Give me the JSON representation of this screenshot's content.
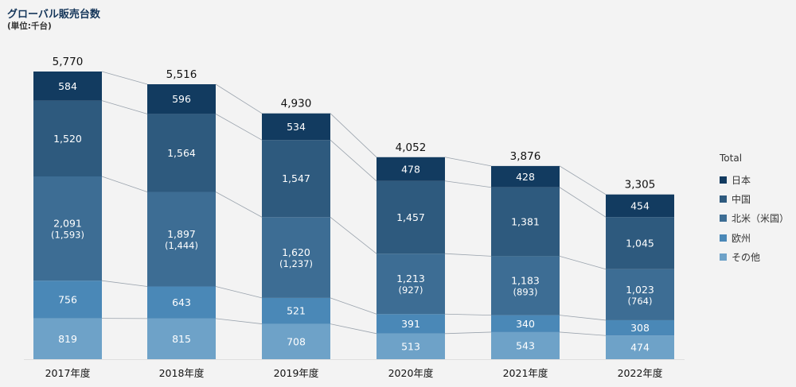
{
  "header": {
    "title": "グローバル販売台数",
    "unit": "(単位:千台)"
  },
  "colors": {
    "日本": "#123b60",
    "中国": "#2e5a7e",
    "北米": "#3d6d94",
    "欧州": "#4a88b7",
    "その他": "#6ea2c8",
    "connector": "#9aa3ad",
    "text_light": "#ffffff",
    "text_dark": "#111111"
  },
  "legend": {
    "title": "Total",
    "items": [
      "日本",
      "中国",
      "北米（米国）",
      "欧州",
      "その他"
    ]
  },
  "chart_data": {
    "type": "bar",
    "stacked": true,
    "categories": [
      "2017年度",
      "2018年度",
      "2019年度",
      "2020年度",
      "2021年度",
      "2022年度"
    ],
    "series": [
      {
        "name": "その他",
        "values": [
          819,
          815,
          708,
          513,
          543,
          474
        ]
      },
      {
        "name": "欧州",
        "values": [
          756,
          643,
          521,
          391,
          340,
          308
        ]
      },
      {
        "name": "北米（米国）",
        "values": [
          2091,
          1897,
          1620,
          1213,
          1183,
          1023
        ],
        "sublabels": [
          "(1,593)",
          "(1,444)",
          "(1,237)",
          "(927)",
          "(893)",
          "(764)"
        ]
      },
      {
        "name": "中国",
        "values": [
          1520,
          1564,
          1547,
          1457,
          1381,
          1045
        ]
      },
      {
        "name": "日本",
        "values": [
          584,
          596,
          534,
          478,
          428,
          454
        ]
      }
    ],
    "totals": [
      5770,
      5516,
      4930,
      4052,
      3876,
      3305
    ],
    "value_labels": {
      "その他": [
        "819",
        "815",
        "708",
        "513",
        "543",
        "474"
      ],
      "欧州": [
        "756",
        "643",
        "521",
        "391",
        "340",
        "308"
      ],
      "北米（米国）": [
        "2,091",
        "1,897",
        "1,620",
        "1,213",
        "1,183",
        "1,023"
      ],
      "中国": [
        "1,520",
        "1,564",
        "1,547",
        "1,457",
        "1,381",
        "1,045"
      ],
      "日本": [
        "584",
        "596",
        "534",
        "478",
        "428",
        "454"
      ]
    },
    "total_labels": [
      "5,770",
      "5,516",
      "4,930",
      "4,052",
      "3,876",
      "3,305"
    ],
    "legend_position": "right",
    "grid": false
  }
}
